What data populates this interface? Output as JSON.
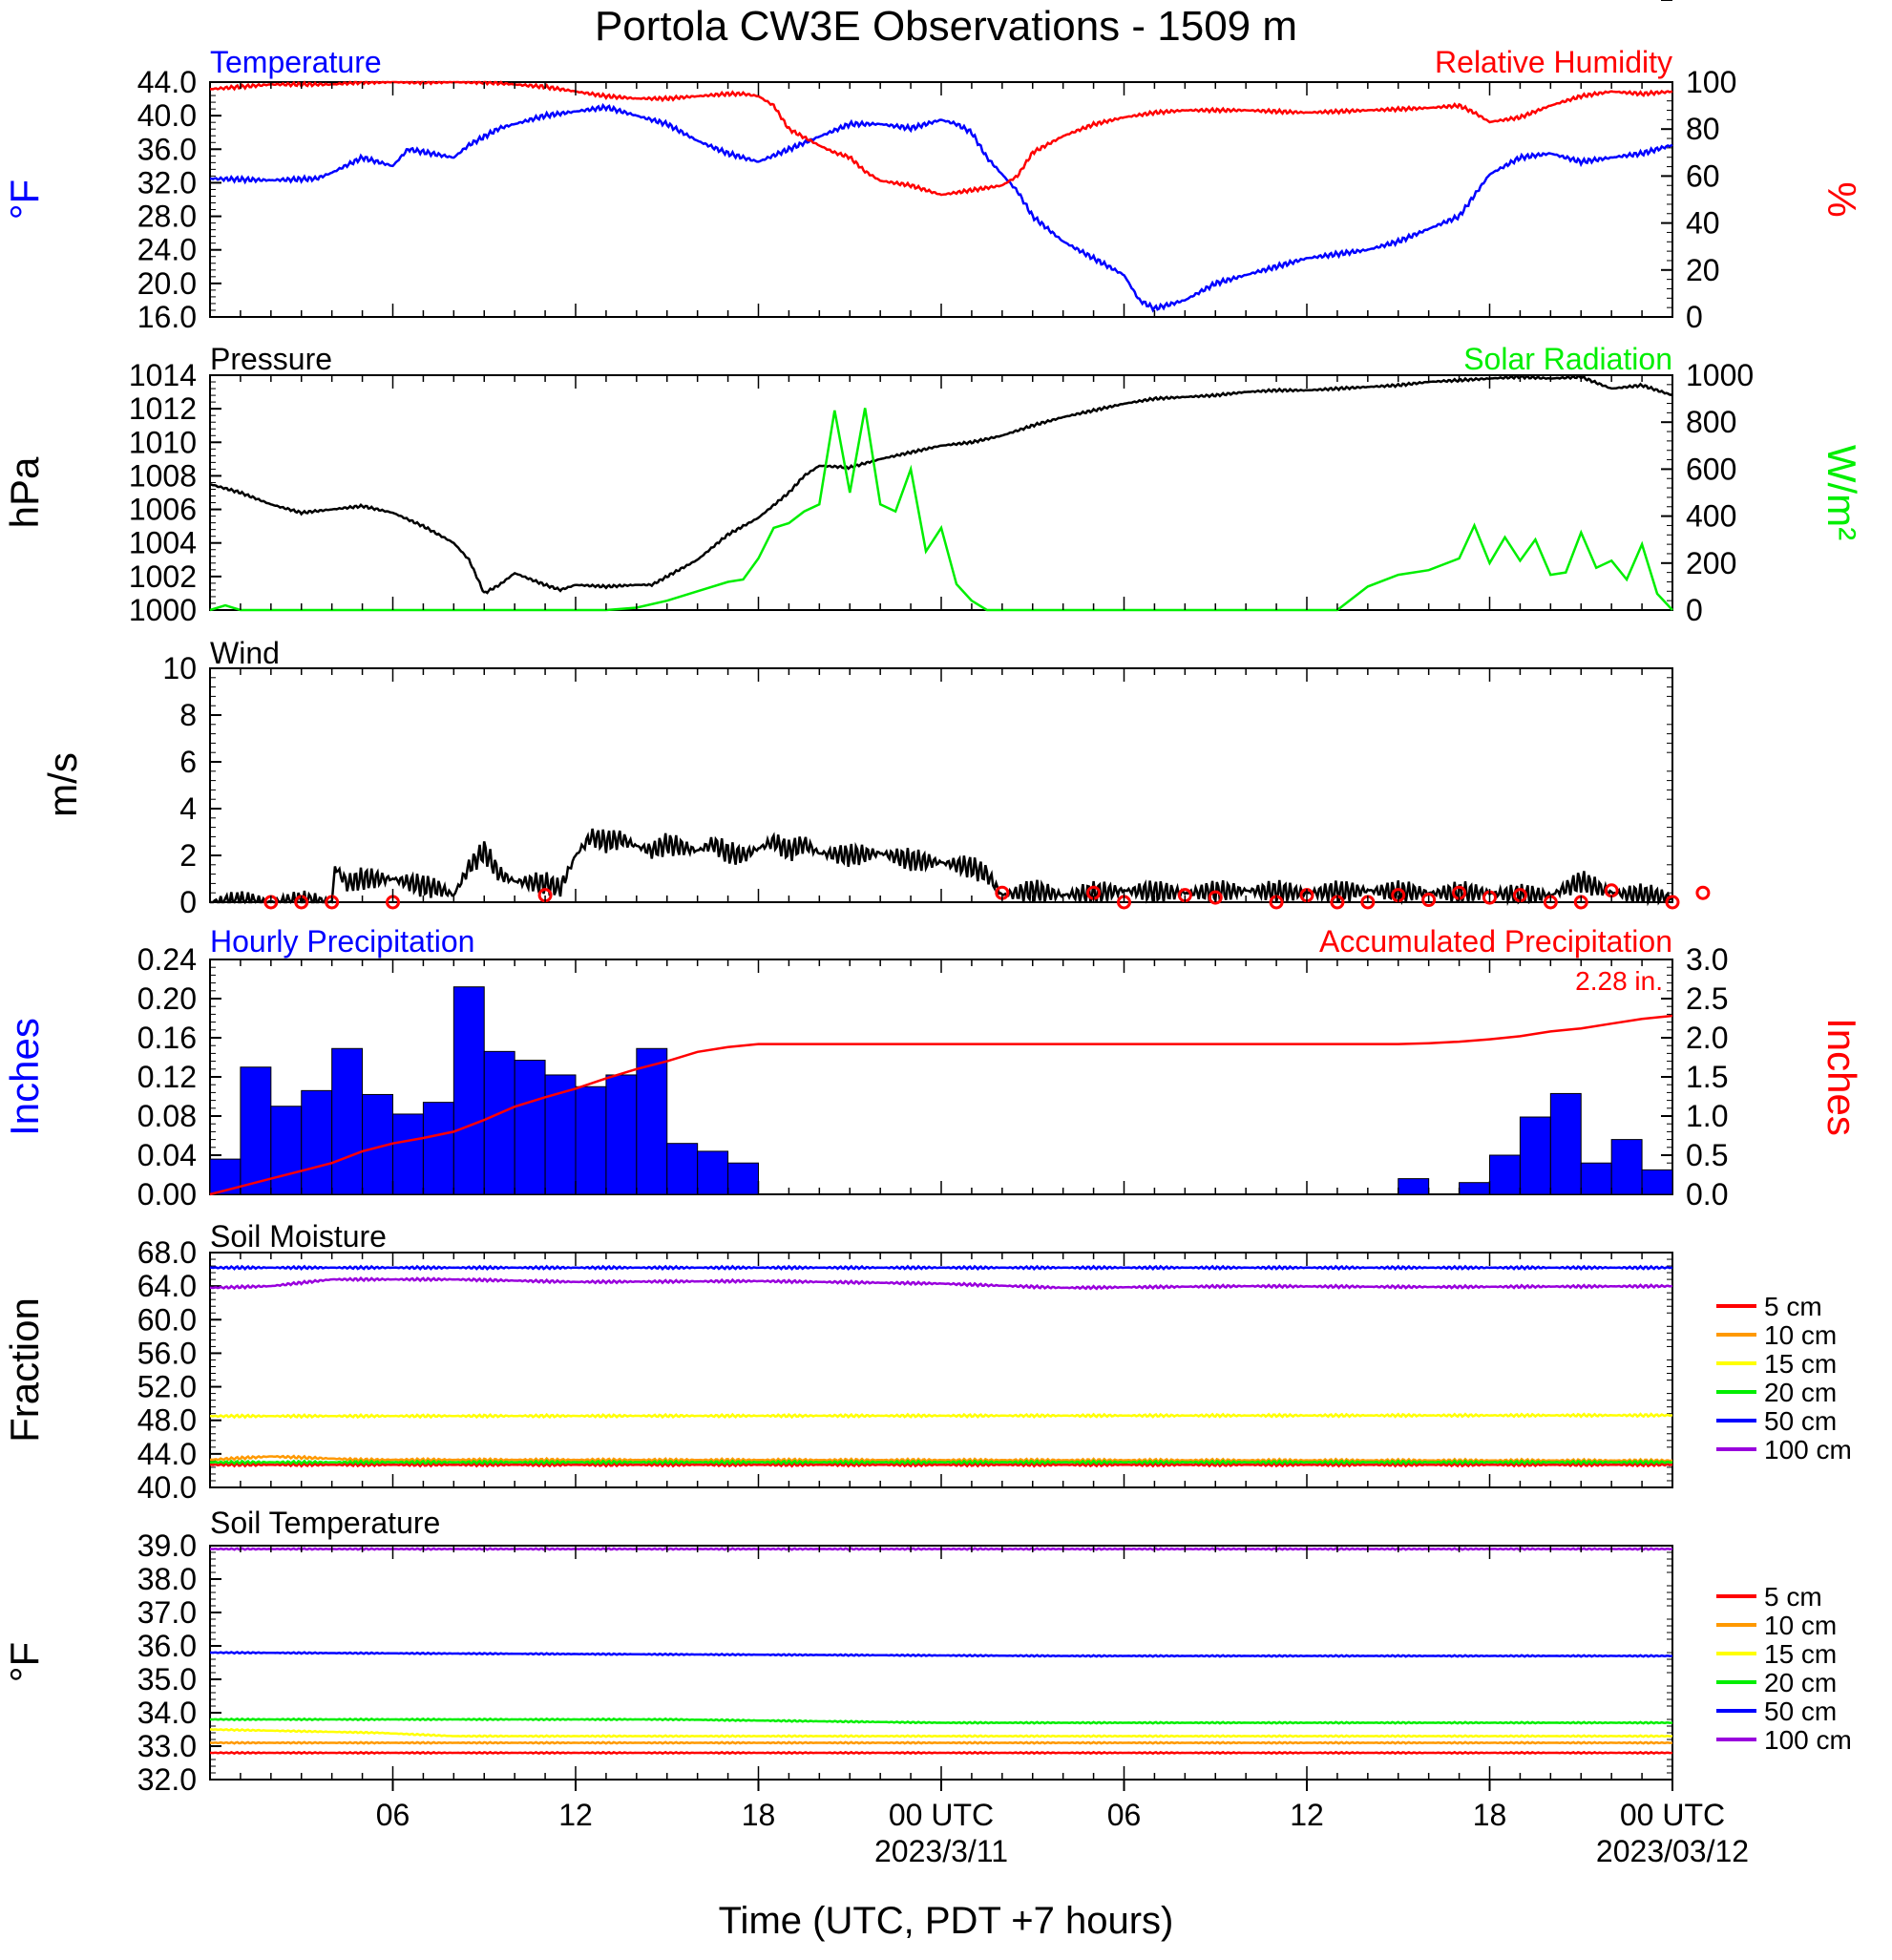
{
  "title": "Portola CW3E Observations - 1509 m",
  "x_axis": {
    "title": "Time (UTC, PDT +7 hours)",
    "hours_range": [
      0,
      48
    ],
    "tick_labels": [
      "06",
      "12",
      "18",
      "00 UTC",
      "06",
      "12",
      "18",
      "00 UTC"
    ],
    "date_labels": [
      "2023/3/11",
      "2023/03/12"
    ]
  },
  "colors": {
    "blue": "#0000ff",
    "red": "#ff0000",
    "green": "#00ee00",
    "black": "#000000",
    "orange": "#ff9900",
    "yellow": "#ffff00",
    "purple": "#9900dd"
  },
  "chart_data": [
    {
      "type": "line",
      "panel": "temperature-humidity",
      "left_title": "Temperature",
      "right_title": "Relative Humidity",
      "left_unit": "oF",
      "right_unit": "%",
      "left_ylim": [
        16,
        44
      ],
      "right_ylim": [
        0,
        100
      ],
      "left_ticks": [
        "16.0",
        "20.0",
        "24.0",
        "28.0",
        "32.0",
        "36.0",
        "40.0",
        "44.0"
      ],
      "right_ticks": [
        "0",
        "20",
        "40",
        "60",
        "80",
        "100"
      ],
      "series": [
        {
          "name": "Temperature",
          "axis": "left",
          "color": "blue",
          "x": [
            0,
            2,
            3.5,
            4,
            5,
            6,
            6.5,
            8,
            8.5,
            9.5,
            10,
            11,
            12,
            13,
            14,
            15,
            16,
            17,
            18,
            19,
            20,
            21,
            22,
            23,
            24,
            24.5,
            25,
            25.5,
            26,
            26.5,
            27,
            28,
            29,
            30,
            30.5,
            31,
            32,
            33,
            34,
            35,
            36,
            37,
            38,
            39,
            40,
            41,
            42,
            43,
            44,
            45,
            46,
            47,
            48
          ],
          "y": [
            32.5,
            32.3,
            32.5,
            33.2,
            35.0,
            34.0,
            36.0,
            35.0,
            36.5,
            38.5,
            39.0,
            40.0,
            40.5,
            41.0,
            40.0,
            39.0,
            37.0,
            35.5,
            34.5,
            36.0,
            37.5,
            39.0,
            39.0,
            38.5,
            39.5,
            39.0,
            38.0,
            35.0,
            33.0,
            31.0,
            28.0,
            25.0,
            23.0,
            21.0,
            18.0,
            17.0,
            18.0,
            20.0,
            21.0,
            22.0,
            23.0,
            23.5,
            24.0,
            25.0,
            26.5,
            28.0,
            33.0,
            35.0,
            35.5,
            34.5,
            35.0,
            35.5,
            36.5
          ]
        },
        {
          "name": "Relative Humidity",
          "axis": "right",
          "color": "red",
          "x": [
            0,
            1,
            2,
            3,
            4,
            5,
            6,
            7,
            8,
            9,
            10,
            11,
            12,
            13,
            14,
            15,
            16,
            17,
            17.5,
            18,
            18.5,
            19,
            20,
            20.5,
            21,
            21.5,
            22,
            23,
            24,
            25,
            26,
            26.5,
            27,
            28,
            29,
            30,
            31,
            32,
            34,
            36,
            38,
            40,
            41,
            41.5,
            42,
            43,
            44,
            45,
            46,
            47,
            48
          ],
          "y": [
            97,
            98,
            99,
            99,
            99,
            100,
            100,
            100,
            100,
            100,
            99,
            98,
            96,
            94,
            93,
            93,
            94,
            95,
            95,
            94,
            90,
            80,
            73,
            70,
            68,
            62,
            58,
            56,
            52,
            54,
            56,
            60,
            70,
            77,
            82,
            85,
            87,
            88,
            88,
            87,
            88,
            89,
            90,
            87,
            83,
            85,
            90,
            94,
            96,
            95,
            96
          ]
        }
      ]
    },
    {
      "type": "line",
      "panel": "pressure-solar",
      "left_title": "Pressure",
      "right_title": "Solar Radiation",
      "left_unit": "hPa",
      "right_unit": "W/m2",
      "left_ylim": [
        1000,
        1014
      ],
      "right_ylim": [
        0,
        1000
      ],
      "left_ticks": [
        "1000",
        "1002",
        "1004",
        "1006",
        "1008",
        "1010",
        "1012",
        "1014"
      ],
      "right_ticks": [
        "0",
        "200",
        "400",
        "600",
        "800",
        "1000"
      ],
      "series": [
        {
          "name": "Pressure",
          "axis": "left",
          "color": "black",
          "x": [
            0,
            1,
            2,
            3,
            4,
            5,
            6,
            7,
            7.5,
            8,
            8.5,
            9,
            9.5,
            10,
            11,
            11.5,
            12,
            13,
            14,
            14.5,
            15,
            16,
            17,
            18,
            19,
            19.5,
            20,
            21,
            22,
            23,
            24,
            25,
            26,
            27,
            28,
            29,
            30,
            31,
            32,
            33,
            34,
            35,
            36,
            37,
            38,
            39,
            40,
            41,
            42,
            43,
            44,
            45,
            46,
            47,
            48
          ],
          "y": [
            1007.5,
            1007.0,
            1006.3,
            1005.8,
            1006.0,
            1006.2,
            1005.8,
            1005.0,
            1004.5,
            1004.0,
            1003.0,
            1001.0,
            1001.5,
            1002.2,
            1001.5,
            1001.2,
            1001.5,
            1001.4,
            1001.5,
            1001.5,
            1002.0,
            1003.0,
            1004.5,
            1005.5,
            1007.0,
            1008.0,
            1008.6,
            1008.5,
            1009.0,
            1009.4,
            1009.8,
            1010.0,
            1010.4,
            1011.0,
            1011.5,
            1011.9,
            1012.3,
            1012.6,
            1012.7,
            1012.8,
            1013.0,
            1013.1,
            1013.1,
            1013.2,
            1013.3,
            1013.4,
            1013.6,
            1013.7,
            1013.8,
            1013.9,
            1013.8,
            1013.9,
            1013.2,
            1013.4,
            1012.8
          ]
        },
        {
          "name": "Solar Radiation",
          "axis": "right",
          "color": "green",
          "x": [
            0,
            0.5,
            1,
            13,
            14,
            15,
            16,
            17,
            17.5,
            18,
            18.5,
            19,
            19.5,
            20,
            20.5,
            21,
            21.5,
            22,
            22.5,
            23,
            23.5,
            24,
            24.5,
            25,
            25.5,
            26,
            30,
            37,
            38,
            39,
            40,
            41,
            41.5,
            42,
            42.5,
            43,
            43.5,
            44,
            44.5,
            45,
            45.5,
            46,
            46.5,
            47,
            47.5,
            48
          ],
          "y": [
            0,
            20,
            0,
            0,
            10,
            40,
            80,
            120,
            130,
            220,
            350,
            370,
            420,
            450,
            850,
            500,
            860,
            450,
            420,
            600,
            250,
            350,
            110,
            40,
            0,
            0,
            0,
            0,
            100,
            150,
            170,
            220,
            360,
            200,
            310,
            210,
            300,
            150,
            160,
            330,
            180,
            210,
            130,
            280,
            70,
            0
          ]
        }
      ]
    },
    {
      "type": "line",
      "panel": "wind",
      "title": "Wind",
      "ylabel": "m/s",
      "ylim": [
        0,
        10
      ],
      "ticks": [
        "0",
        "2",
        "4",
        "6",
        "8",
        "10"
      ],
      "series": [
        {
          "name": "Wind",
          "color": "black",
          "x": [
            0,
            4,
            4.1,
            4.5,
            5,
            6,
            7,
            7.5,
            8,
            8.5,
            9,
            9.5,
            10,
            11,
            11.5,
            12,
            12.5,
            13,
            13.5,
            14,
            14.5,
            15,
            16,
            16.5,
            17,
            17.5,
            18,
            18.5,
            19,
            19.5,
            20,
            21,
            22,
            23,
            24,
            25,
            25.5,
            26,
            27,
            28,
            30,
            32,
            34,
            36,
            38,
            40,
            42,
            43,
            44,
            45,
            46,
            47,
            48
          ],
          "y": [
            0,
            0,
            1.5,
            0.8,
            1.0,
            1.0,
            0.7,
            0.6,
            0.3,
            1.5,
            2.2,
            1.2,
            0.9,
            0.8,
            0.6,
            2.0,
            2.8,
            2.6,
            2.7,
            2.4,
            2.2,
            2.5,
            2.2,
            2.5,
            2.1,
            2.0,
            2.3,
            2.6,
            2.2,
            2.5,
            2.1,
            2.0,
            2.1,
            1.8,
            1.7,
            1.5,
            1.2,
            0.3,
            0.5,
            0.3,
            0.5,
            0.4,
            0.5,
            0.4,
            0.5,
            0.4,
            0.4,
            0.3,
            0.3,
            0.9,
            0.4,
            0.3,
            0.2
          ]
        },
        {
          "name": "Wind Calm",
          "color": "red",
          "type": "marker",
          "x": [
            2,
            3,
            4,
            6,
            11,
            26,
            29,
            30,
            32,
            33,
            35,
            36,
            37,
            38,
            39,
            40,
            41,
            42,
            43,
            44,
            45,
            46,
            48,
            49
          ],
          "y": [
            0,
            0,
            0,
            0,
            0.3,
            0.4,
            0.4,
            0,
            0.3,
            0.2,
            0,
            0.3,
            0,
            0,
            0.3,
            0.1,
            0.4,
            0.2,
            0.3,
            0,
            0,
            0.5,
            0,
            0.4
          ]
        }
      ]
    },
    {
      "type": "bar",
      "panel": "precipitation",
      "left_title": "Hourly Precipitation",
      "right_title": "Accumulated Precipitation",
      "annotation": "2.28 in.",
      "left_unit": "Inches",
      "right_unit": "Inches",
      "left_ylim": [
        0,
        0.24
      ],
      "right_ylim": [
        0,
        3.0
      ],
      "left_ticks": [
        "0.00",
        "0.04",
        "0.08",
        "0.12",
        "0.16",
        "0.20",
        "0.24"
      ],
      "right_ticks": [
        "0.0",
        "0.5",
        "1.0",
        "1.5",
        "2.0",
        "2.5",
        "3.0"
      ],
      "hourly": [
        0.036,
        0.13,
        0.09,
        0.106,
        0.149,
        0.102,
        0.082,
        0.094,
        0.212,
        0.146,
        0.137,
        0.122,
        0.11,
        0.122,
        0.149,
        0.052,
        0.044,
        0.032,
        0,
        0,
        0,
        0,
        0,
        0,
        0,
        0,
        0,
        0,
        0,
        0,
        0,
        0,
        0,
        0,
        0,
        0,
        0,
        0,
        0,
        0.016,
        0,
        0.012,
        0.04,
        0.079,
        0.103,
        0.032,
        0.056,
        0.025
      ],
      "accumulated": {
        "x": [
          0,
          1,
          2,
          3,
          4,
          5,
          6,
          7,
          8,
          9,
          10,
          11,
          12,
          13,
          14,
          15,
          16,
          17,
          18,
          19,
          20,
          28,
          36,
          39,
          40,
          41,
          42,
          43,
          44,
          45,
          46,
          47,
          48
        ],
        "y": [
          0,
          0.1,
          0.2,
          0.3,
          0.4,
          0.55,
          0.65,
          0.72,
          0.8,
          0.95,
          1.12,
          1.24,
          1.35,
          1.48,
          1.6,
          1.7,
          1.82,
          1.88,
          1.92,
          1.92,
          1.92,
          1.92,
          1.92,
          1.92,
          1.93,
          1.95,
          1.98,
          2.02,
          2.08,
          2.12,
          2.18,
          2.24,
          2.28
        ]
      }
    },
    {
      "type": "line",
      "panel": "soil-moisture",
      "title": "Soil Moisture",
      "ylabel": "Fraction",
      "ylim": [
        40,
        68
      ],
      "ticks": [
        "40.0",
        "44.0",
        "48.0",
        "52.0",
        "56.0",
        "60.0",
        "64.0",
        "68.0"
      ],
      "series": [
        {
          "name": "5 cm",
          "color": "red",
          "x": [
            0,
            48
          ],
          "y": [
            42.7,
            42.7
          ]
        },
        {
          "name": "10 cm",
          "color": "orange",
          "x": [
            0,
            2,
            5,
            48
          ],
          "y": [
            43.3,
            43.7,
            43.3,
            43.2
          ]
        },
        {
          "name": "15 cm",
          "color": "yellow",
          "x": [
            0,
            48
          ],
          "y": [
            48.5,
            48.6
          ]
        },
        {
          "name": "20 cm",
          "color": "green",
          "x": [
            0,
            48
          ],
          "y": [
            43.0,
            43.0
          ]
        },
        {
          "name": "50 cm",
          "color": "blue",
          "x": [
            0,
            48
          ],
          "y": [
            66.2,
            66.2
          ]
        },
        {
          "name": "100 cm",
          "color": "purple",
          "x": [
            0,
            2,
            4,
            8,
            12,
            18,
            24,
            28,
            34,
            40,
            48
          ],
          "y": [
            63.8,
            64.0,
            64.8,
            64.8,
            64.5,
            64.6,
            64.3,
            63.8,
            64.0,
            63.9,
            64.0
          ]
        }
      ]
    },
    {
      "type": "line",
      "panel": "soil-temperature",
      "title": "Soil Temperature",
      "ylabel": "oF",
      "ylim": [
        32,
        39
      ],
      "ticks": [
        "32.0",
        "33.0",
        "34.0",
        "35.0",
        "36.0",
        "37.0",
        "38.0",
        "39.0"
      ],
      "series": [
        {
          "name": "5 cm",
          "color": "red",
          "x": [
            0,
            48
          ],
          "y": [
            32.8,
            32.8
          ]
        },
        {
          "name": "10 cm",
          "color": "orange",
          "x": [
            0,
            48
          ],
          "y": [
            33.1,
            33.1
          ]
        },
        {
          "name": "15 cm",
          "color": "yellow",
          "x": [
            0,
            5.5,
            8,
            48
          ],
          "y": [
            33.5,
            33.4,
            33.3,
            33.3
          ]
        },
        {
          "name": "20 cm",
          "color": "green",
          "x": [
            0,
            15,
            24,
            48
          ],
          "y": [
            33.8,
            33.8,
            33.7,
            33.7
          ]
        },
        {
          "name": "50 cm",
          "color": "blue",
          "x": [
            0,
            28,
            48
          ],
          "y": [
            35.8,
            35.7,
            35.7
          ]
        },
        {
          "name": "100 cm",
          "color": "purple",
          "x": [
            0,
            48
          ],
          "y": [
            38.9,
            38.9
          ]
        }
      ]
    }
  ]
}
